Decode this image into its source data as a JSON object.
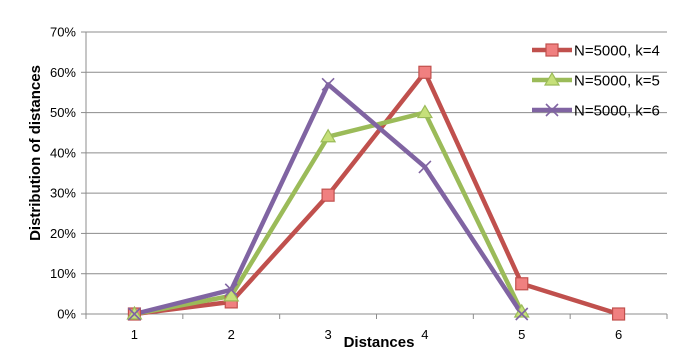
{
  "chart_data": {
    "type": "line",
    "title": "",
    "xlabel": "Distances",
    "ylabel": "Distribution of distances",
    "categories": [
      "1",
      "2",
      "3",
      "4",
      "5",
      "6"
    ],
    "y_ticks": [
      "0%",
      "10%",
      "20%",
      "30%",
      "40%",
      "50%",
      "60%",
      "70%"
    ],
    "ylim": [
      0,
      70
    ],
    "grid": true,
    "legend_position": "top-right",
    "series": [
      {
        "name": "N=5000, k=4",
        "color": "#c0504d",
        "marker": "square",
        "values": [
          0,
          3,
          29.5,
          60,
          7.5,
          0
        ]
      },
      {
        "name": "N=5000, k=5",
        "color": "#9bbb59",
        "marker": "triangle",
        "values": [
          0,
          4.5,
          44,
          50,
          0.5,
          null
        ]
      },
      {
        "name": "N=5000, k=6",
        "color": "#8064a2",
        "marker": "x",
        "values": [
          0,
          6,
          57,
          36.5,
          0,
          null
        ]
      }
    ]
  }
}
